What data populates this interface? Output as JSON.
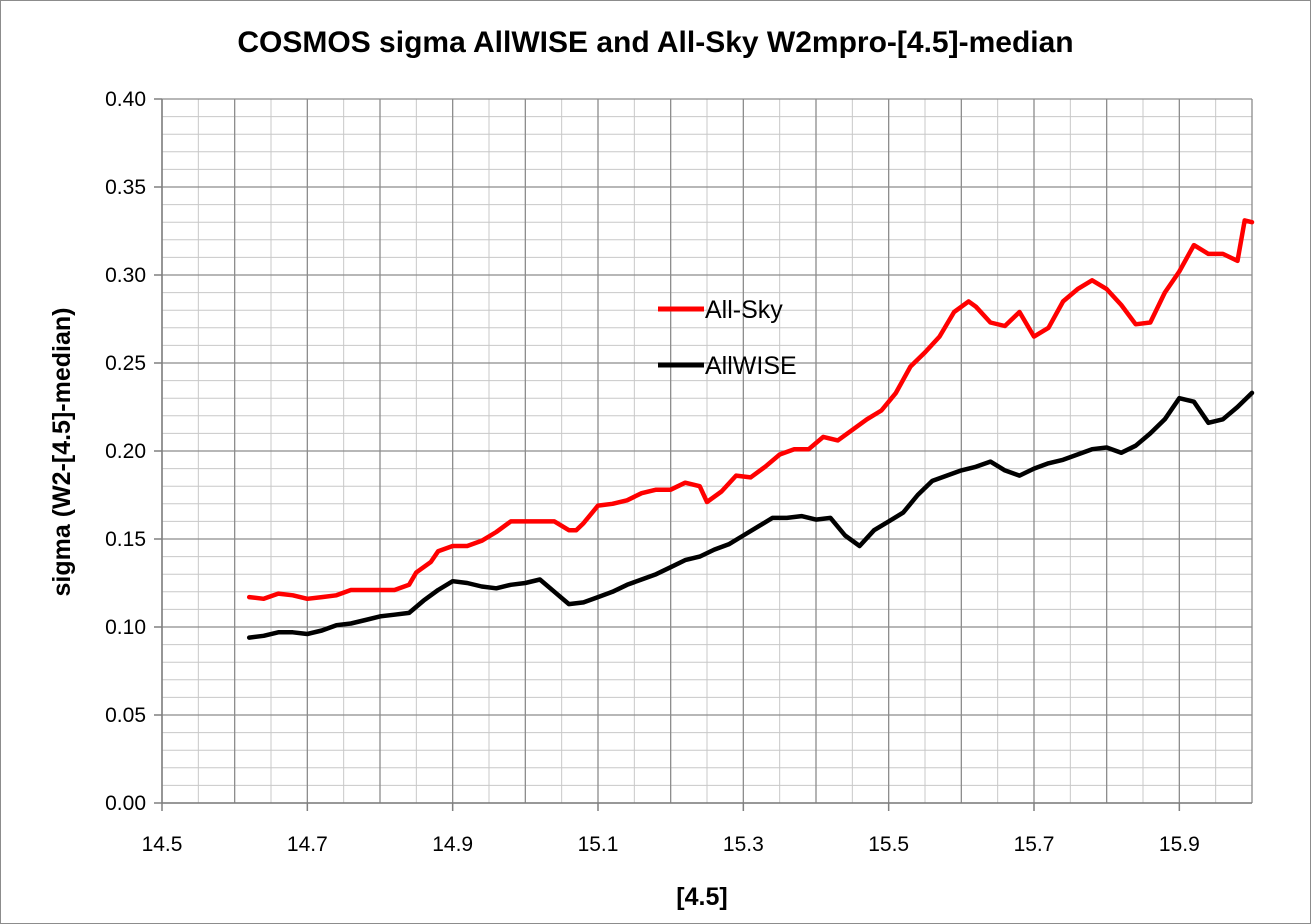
{
  "chart_data": {
    "type": "line",
    "title": "COSMOS sigma AllWISE and All-Sky W2mpro-[4.5]-median",
    "xlabel": "[4.5]",
    "ylabel": "sigma (W2-[4.5]-median)",
    "xlim": [
      14.5,
      16.0
    ],
    "ylim": [
      0.0,
      0.4
    ],
    "x_ticks": [
      "14.5",
      "14.7",
      "14.9",
      "15.1",
      "15.3",
      "15.5",
      "15.7",
      "15.9"
    ],
    "y_ticks": [
      "0.00",
      "0.05",
      "0.10",
      "0.15",
      "0.20",
      "0.25",
      "0.30",
      "0.35",
      "0.40"
    ],
    "grid": true,
    "legend_position": "center",
    "series": [
      {
        "name": "All-Sky",
        "color": "#ff0000",
        "x": [
          14.62,
          14.64,
          14.66,
          14.68,
          14.7,
          14.72,
          14.74,
          14.76,
          14.78,
          14.8,
          14.82,
          14.84,
          14.85,
          14.87,
          14.88,
          14.9,
          14.92,
          14.94,
          14.96,
          14.98,
          15.0,
          15.02,
          15.04,
          15.06,
          15.07,
          15.08,
          15.1,
          15.12,
          15.14,
          15.16,
          15.18,
          15.2,
          15.22,
          15.24,
          15.25,
          15.27,
          15.29,
          15.31,
          15.33,
          15.35,
          15.37,
          15.39,
          15.41,
          15.43,
          15.45,
          15.47,
          15.49,
          15.51,
          15.53,
          15.55,
          15.57,
          15.59,
          15.61,
          15.62,
          15.64,
          15.66,
          15.68,
          15.7,
          15.72,
          15.74,
          15.76,
          15.78,
          15.8,
          15.82,
          15.84,
          15.86,
          15.88,
          15.9,
          15.92,
          15.94,
          15.96,
          15.98,
          15.99,
          16.0
        ],
        "y": [
          0.117,
          0.116,
          0.119,
          0.118,
          0.116,
          0.117,
          0.118,
          0.121,
          0.121,
          0.121,
          0.121,
          0.124,
          0.131,
          0.137,
          0.143,
          0.146,
          0.146,
          0.149,
          0.154,
          0.16,
          0.16,
          0.16,
          0.16,
          0.155,
          0.155,
          0.159,
          0.169,
          0.17,
          0.172,
          0.176,
          0.178,
          0.178,
          0.182,
          0.18,
          0.171,
          0.177,
          0.186,
          0.185,
          0.191,
          0.198,
          0.201,
          0.201,
          0.208,
          0.206,
          0.212,
          0.218,
          0.223,
          0.233,
          0.248,
          0.256,
          0.265,
          0.279,
          0.285,
          0.282,
          0.273,
          0.271,
          0.279,
          0.265,
          0.27,
          0.285,
          0.292,
          0.297,
          0.292,
          0.283,
          0.272,
          0.273,
          0.29,
          0.302,
          0.317,
          0.312,
          0.312,
          0.308,
          0.331,
          0.33
        ]
      },
      {
        "name": "AllWISE",
        "color": "#000000",
        "x": [
          14.62,
          14.64,
          14.66,
          14.68,
          14.7,
          14.72,
          14.74,
          14.76,
          14.78,
          14.8,
          14.82,
          14.84,
          14.86,
          14.88,
          14.9,
          14.92,
          14.94,
          14.96,
          14.98,
          15.0,
          15.02,
          15.04,
          15.06,
          15.08,
          15.1,
          15.12,
          15.14,
          15.16,
          15.18,
          15.2,
          15.22,
          15.24,
          15.26,
          15.28,
          15.3,
          15.32,
          15.34,
          15.36,
          15.38,
          15.4,
          15.42,
          15.44,
          15.46,
          15.48,
          15.5,
          15.52,
          15.54,
          15.56,
          15.58,
          15.6,
          15.62,
          15.64,
          15.66,
          15.68,
          15.7,
          15.72,
          15.74,
          15.76,
          15.78,
          15.8,
          15.82,
          15.84,
          15.86,
          15.88,
          15.9,
          15.92,
          15.94,
          15.96,
          15.98,
          16.0
        ],
        "y": [
          0.094,
          0.095,
          0.097,
          0.097,
          0.096,
          0.098,
          0.101,
          0.102,
          0.104,
          0.106,
          0.107,
          0.108,
          0.115,
          0.121,
          0.126,
          0.125,
          0.123,
          0.122,
          0.124,
          0.125,
          0.127,
          0.12,
          0.113,
          0.114,
          0.117,
          0.12,
          0.124,
          0.127,
          0.13,
          0.134,
          0.138,
          0.14,
          0.144,
          0.147,
          0.152,
          0.157,
          0.162,
          0.162,
          0.163,
          0.161,
          0.162,
          0.152,
          0.146,
          0.155,
          0.16,
          0.165,
          0.175,
          0.183,
          0.186,
          0.189,
          0.191,
          0.194,
          0.189,
          0.186,
          0.19,
          0.193,
          0.195,
          0.198,
          0.201,
          0.202,
          0.199,
          0.203,
          0.21,
          0.218,
          0.23,
          0.228,
          0.216,
          0.218,
          0.225,
          0.233
        ]
      }
    ]
  }
}
